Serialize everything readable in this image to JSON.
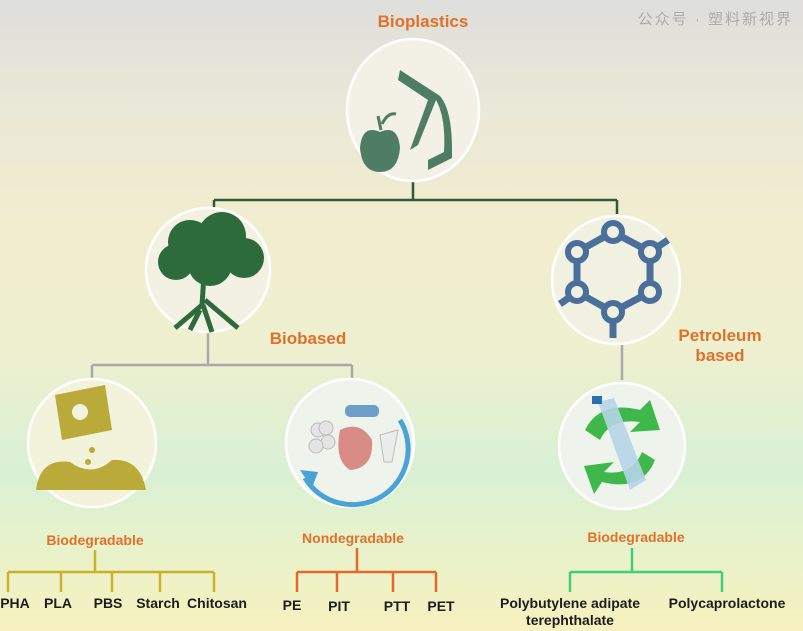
{
  "root": {
    "label": "Bioplastics",
    "icon": "apple-bag-icon"
  },
  "branches": [
    {
      "label": "Biobased",
      "icon": "tree-icon",
      "children": [
        {
          "label": "Biodegradable",
          "icon": "compost-bag-icon",
          "line_color": "#c9b32a",
          "items": [
            "PHA",
            "PLA",
            "PBS",
            "Starch",
            "Chitosan"
          ]
        },
        {
          "label": "Nondegradable",
          "icon": "plastic-waste-icon",
          "line_color": "#e0692e",
          "items": [
            "PE",
            "PIT",
            "PTT",
            "PET"
          ]
        }
      ]
    },
    {
      "label": "Petroleum based",
      "label_lines": [
        "Petroleum",
        "based"
      ],
      "icon": "molecule-ring-icon",
      "children": [
        {
          "label": "Biodegradable",
          "icon": "recycle-bottle-icon",
          "line_color": "#3ecf78",
          "items": [
            "Polybutylene adipate terephthalate",
            "Polycaprolactone"
          ],
          "item_lines": [
            "Polybutylene adipate",
            "terephthalate"
          ]
        }
      ]
    }
  ],
  "watermark": "公众号 · 塑料新视界",
  "colors": {
    "label": "#e2702b",
    "root_line": "#2f5a35",
    "branch_line": "#a9aaa6",
    "icon_green": "#4e7d63",
    "tree_green": "#2d6a3c",
    "molecule_blue": "#4a6f9a"
  }
}
